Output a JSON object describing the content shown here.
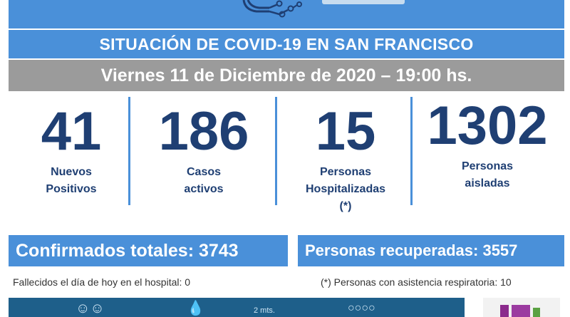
{
  "header": {
    "title": "SITUACIÓN DE COVID-19 EN SAN FRANCISCO",
    "date": "Viernes 11 de Diciembre de 2020 – 19:00 hs."
  },
  "stats": [
    {
      "value": "41",
      "label_line1": "Nuevos",
      "label_line2": "Positivos",
      "label_line3": ""
    },
    {
      "value": "186",
      "label_line1": "Casos",
      "label_line2": "activos",
      "label_line3": ""
    },
    {
      "value": "15",
      "label_line1": "Personas",
      "label_line2": "Hospitalizadas",
      "label_line3": "(*)"
    },
    {
      "value": "1302",
      "label_line1": "Personas",
      "label_line2": "aisladas",
      "label_line3": ""
    }
  ],
  "totals": {
    "confirmados": "Confirmados totales: 3743",
    "recuperadas": "Personas recuperadas: 3557"
  },
  "notes": {
    "fallecidos": "Fallecidos el día de hoy en el hospital: 0",
    "asistencia": "(*) Personas con asistencia respiratoria: 10"
  },
  "bottom": {
    "distance_label": "2 mts."
  },
  "colors": {
    "banner_blue": "#4a90d9",
    "date_gray": "#9b9b9b",
    "number_navy": "#1f3f73",
    "bottom_teal": "#1e5f8a"
  },
  "icons": [
    "virus-logo-icon",
    "masked-faces-icon",
    "droplets-icon",
    "distance-people-icon",
    "group-icon"
  ]
}
